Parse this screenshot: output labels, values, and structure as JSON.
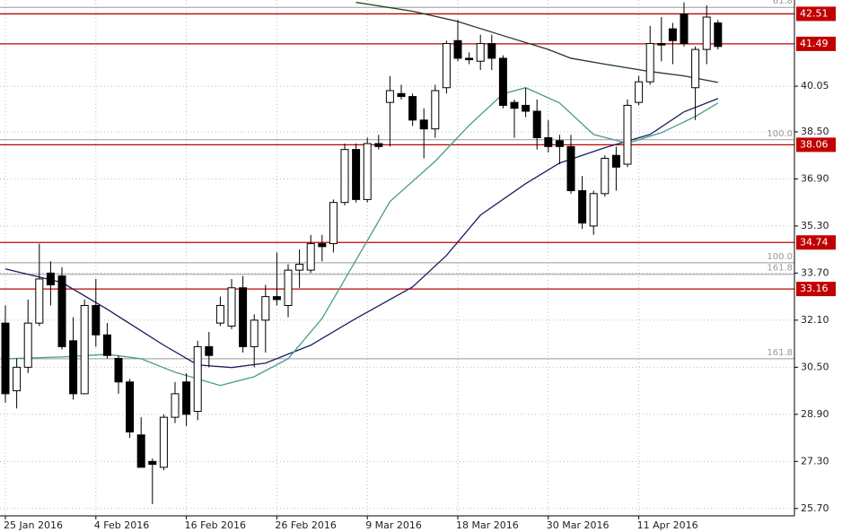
{
  "chart_data": {
    "type": "candlestick",
    "categories": [
      "25 Jan 2016",
      null,
      null,
      null,
      null,
      null,
      null,
      null,
      "4 Feb 2016",
      null,
      null,
      null,
      null,
      null,
      null,
      null,
      "16 Feb 2016",
      null,
      null,
      null,
      null,
      null,
      null,
      null,
      "26 Feb 2016",
      null,
      null,
      null,
      null,
      null,
      null,
      null,
      "9 Mar 2016",
      null,
      null,
      null,
      null,
      null,
      null,
      null,
      "18 Mar 2016",
      null,
      null,
      null,
      null,
      null,
      null,
      null,
      "30 Mar 2016",
      null,
      null,
      null,
      null,
      null,
      null,
      null,
      "11 Apr 2016",
      null,
      null,
      null,
      null,
      null,
      null,
      null
    ],
    "open": [
      32.0,
      29.7,
      30.5,
      32.0,
      33.7,
      33.6,
      31.4,
      29.6,
      32.6,
      31.6,
      30.8,
      30.0,
      28.2,
      27.3,
      27.1,
      28.8,
      30.0,
      29.0,
      31.2,
      32.0,
      31.9,
      33.2,
      31.2,
      32.1,
      32.9,
      32.6,
      33.8,
      33.8,
      34.7,
      34.7,
      36.1,
      37.9,
      36.2,
      38.1,
      39.5,
      39.8,
      39.7,
      38.9,
      38.6,
      40.0,
      41.6,
      41.0,
      40.9,
      41.5,
      41.0,
      39.5,
      39.4,
      39.2,
      38.3,
      38.2,
      38.0,
      36.5,
      35.3,
      36.4,
      37.7,
      37.4,
      39.5,
      40.2,
      41.5,
      42.0,
      42.5,
      40.0,
      41.3,
      42.2
    ],
    "high": [
      32.6,
      30.8,
      32.8,
      34.7,
      34.1,
      33.9,
      32.2,
      32.8,
      33.5,
      32.0,
      30.9,
      30.1,
      28.8,
      27.4,
      28.9,
      30.0,
      30.3,
      31.4,
      31.7,
      32.9,
      33.5,
      33.6,
      32.3,
      33.3,
      34.4,
      34.0,
      34.5,
      35.0,
      35.0,
      36.2,
      38.1,
      38.1,
      38.3,
      38.4,
      40.4,
      40.1,
      39.8,
      39.3,
      40.1,
      41.6,
      42.3,
      41.2,
      41.8,
      41.8,
      41.1,
      39.6,
      40.0,
      39.6,
      38.9,
      38.4,
      38.4,
      37.0,
      36.5,
      37.7,
      38.0,
      39.6,
      40.4,
      42.1,
      42.4,
      42.2,
      42.9,
      41.4,
      42.8,
      42.3
    ],
    "low": [
      29.3,
      29.1,
      30.3,
      31.9,
      32.6,
      31.1,
      29.4,
      29.6,
      31.2,
      30.8,
      29.6,
      28.1,
      27.1,
      25.85,
      27.0,
      28.6,
      28.5,
      28.7,
      30.5,
      31.9,
      31.8,
      31.0,
      30.5,
      31.0,
      32.6,
      32.2,
      33.2,
      33.7,
      34.1,
      34.4,
      36.0,
      36.1,
      36.1,
      37.9,
      38.0,
      39.6,
      38.7,
      37.6,
      38.3,
      39.8,
      40.9,
      40.8,
      40.6,
      40.6,
      39.3,
      38.3,
      39.0,
      37.9,
      37.8,
      37.4,
      36.4,
      35.2,
      35.0,
      36.3,
      36.5,
      37.3,
      39.4,
      40.1,
      40.9,
      40.8,
      41.4,
      38.9,
      40.8,
      41.3
    ],
    "close": [
      29.6,
      30.5,
      32.0,
      33.5,
      33.3,
      31.2,
      29.6,
      32.6,
      31.6,
      30.9,
      30.0,
      28.3,
      27.1,
      27.2,
      28.8,
      29.6,
      28.9,
      31.2,
      30.9,
      32.6,
      33.2,
      31.2,
      32.1,
      32.9,
      32.8,
      33.8,
      34.0,
      34.7,
      34.6,
      36.1,
      37.9,
      36.2,
      38.1,
      38.0,
      39.9,
      39.7,
      38.9,
      38.6,
      39.9,
      41.5,
      41.0,
      40.95,
      41.5,
      41.0,
      39.4,
      39.3,
      39.2,
      38.3,
      38.0,
      38.0,
      36.5,
      35.4,
      36.4,
      37.6,
      37.3,
      39.4,
      40.2,
      41.5,
      41.45,
      41.6,
      41.5,
      41.3,
      42.4,
      41.4
    ],
    "up_color": "#ffffff",
    "down_color": "#000000",
    "ylim": [
      25.45,
      42.98
    ],
    "yticks": [
      {
        "value": 25.7,
        "label": "25.70"
      },
      {
        "value": 27.3,
        "label": "27.30"
      },
      {
        "value": 28.9,
        "label": "28.90"
      },
      {
        "value": 30.5,
        "label": "30.50"
      },
      {
        "value": 32.1,
        "label": "32.10"
      },
      {
        "value": 33.7,
        "label": "33.70"
      },
      {
        "value": 35.3,
        "label": "35.30"
      },
      {
        "value": 36.9,
        "label": "36.90"
      },
      {
        "value": 38.5,
        "label": "38.50"
      },
      40.05
    ],
    "grid": true,
    "lines": [
      {
        "color": "#1f3a1f",
        "x": [
          31,
          36,
          40,
          44,
          48,
          50,
          53,
          57,
          60,
          63
        ],
        "values": [
          42.9,
          42.6,
          42.25,
          41.77,
          41.3,
          41.0,
          40.8,
          40.55,
          40.4,
          40.18
        ]
      },
      {
        "color": "#1a1f5e",
        "x": [
          0,
          5,
          9,
          14,
          17,
          20,
          23,
          27,
          31,
          36,
          39,
          42,
          46,
          49,
          53,
          57,
          60,
          63
        ],
        "values": [
          33.84,
          33.38,
          32.47,
          31.25,
          30.58,
          30.49,
          30.64,
          31.25,
          32.16,
          33.23,
          34.3,
          35.67,
          36.74,
          37.44,
          37.96,
          38.41,
          39.18,
          39.63
        ]
      },
      {
        "color": "#4a9a8a",
        "x": [
          0,
          5,
          9,
          12,
          15,
          19,
          22,
          25,
          28,
          31,
          34,
          38,
          41,
          44,
          46,
          49,
          52,
          55,
          58,
          61,
          63
        ],
        "values": [
          30.79,
          30.85,
          30.94,
          30.79,
          30.33,
          29.88,
          30.18,
          30.79,
          32.16,
          34.14,
          36.13,
          37.5,
          38.72,
          39.79,
          40.0,
          39.48,
          38.41,
          38.11,
          38.47,
          39.02,
          39.48
        ]
      }
    ],
    "levels": [
      42.51,
      41.49,
      38.06,
      34.74,
      33.16
    ],
    "level_color": "#c00000",
    "fib_levels": [
      {
        "value": 42.73,
        "label": "61.8"
      },
      {
        "value": 38.23,
        "label": "100.0"
      },
      {
        "value": 34.05,
        "label": "100.0"
      },
      {
        "value": 33.66,
        "label": "161.8"
      },
      {
        "value": 30.79,
        "label": "161.8"
      }
    ],
    "fib_color": "#999999"
  }
}
